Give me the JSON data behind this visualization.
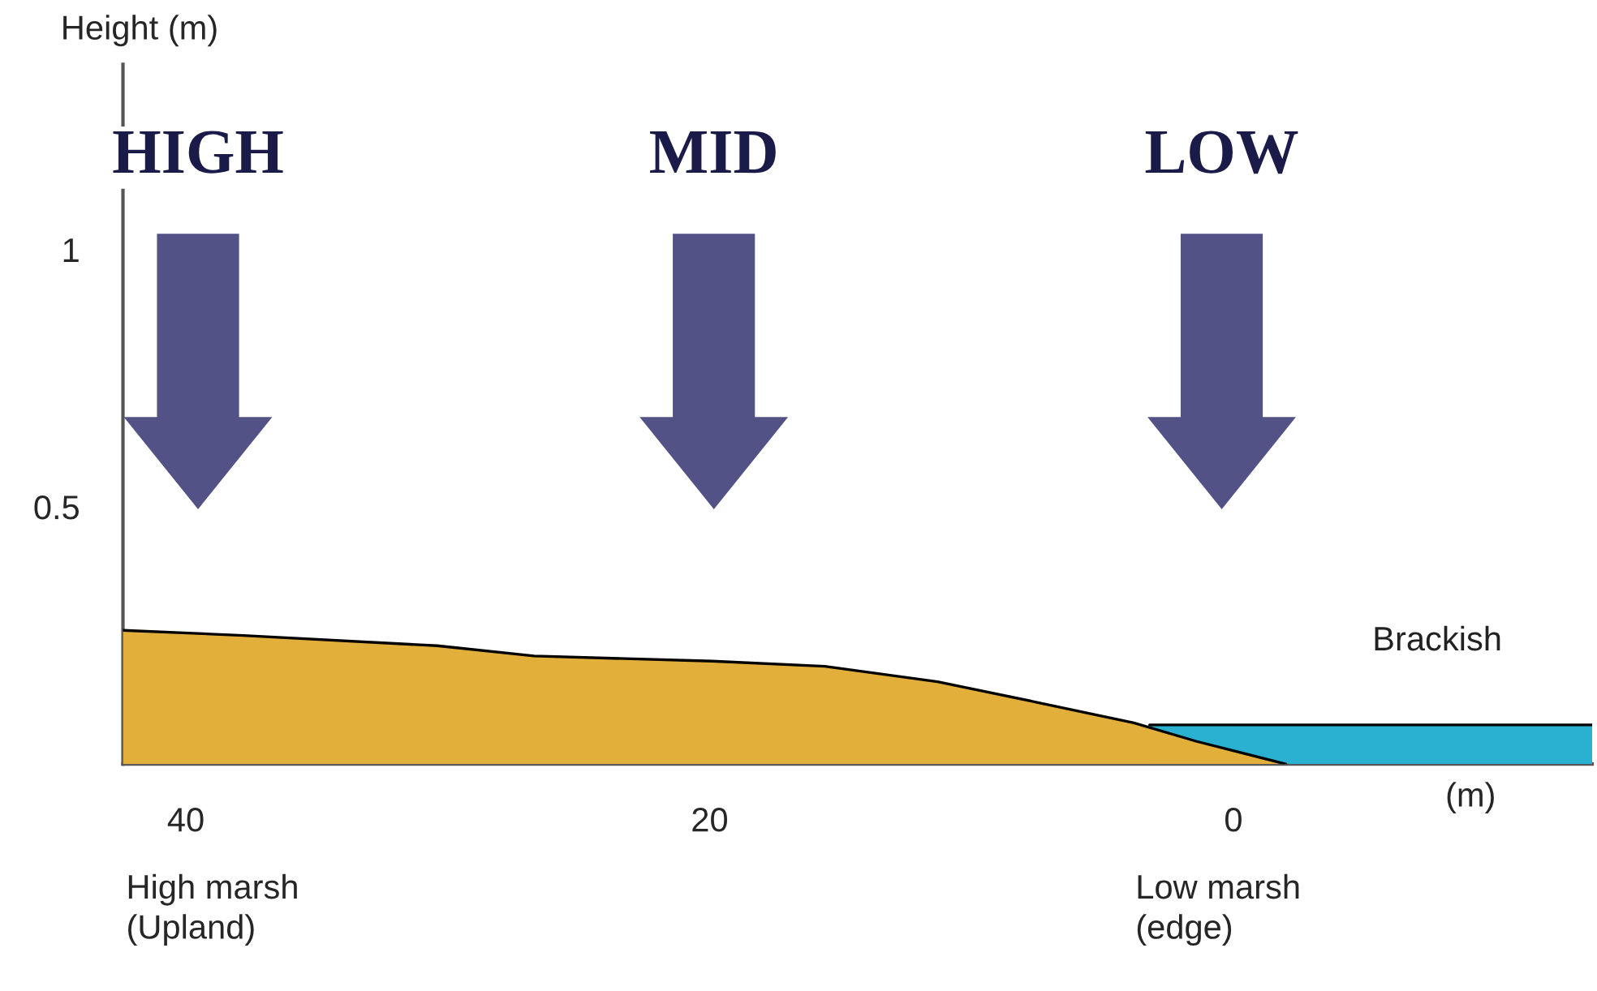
{
  "chart_data": {
    "type": "area",
    "ylabel": "Height (m)",
    "xlabel": "(m)",
    "xlim": [
      42.4,
      -13.7
    ],
    "ylim": [
      0,
      1.36
    ],
    "xticks": [
      40,
      20,
      0
    ],
    "yticks": [
      0.5,
      1
    ],
    "grid": false,
    "legend": false,
    "series": [
      {
        "color": "#e3af3b",
        "x": [
          42.4,
          37.8,
          30.4,
          26.7,
          19.9,
          15.6,
          11.3,
          7.5,
          3.8,
          1.4,
          -2.0
        ],
        "values": [
          0.26,
          0.25,
          0.23,
          0.21,
          0.2,
          0.19,
          0.16,
          0.12,
          0.08,
          0.044,
          0
        ]
      },
      {
        "name": "Brackish",
        "color": "#2ab1d1",
        "x": [
          3.2,
          -13.7
        ],
        "values": [
          0.076,
          0.076
        ]
      }
    ],
    "annotations": [
      "HIGH",
      "MID",
      "LOW",
      "High marsh\n(Upland)",
      "Low marsh\n(edge)"
    ]
  }
}
